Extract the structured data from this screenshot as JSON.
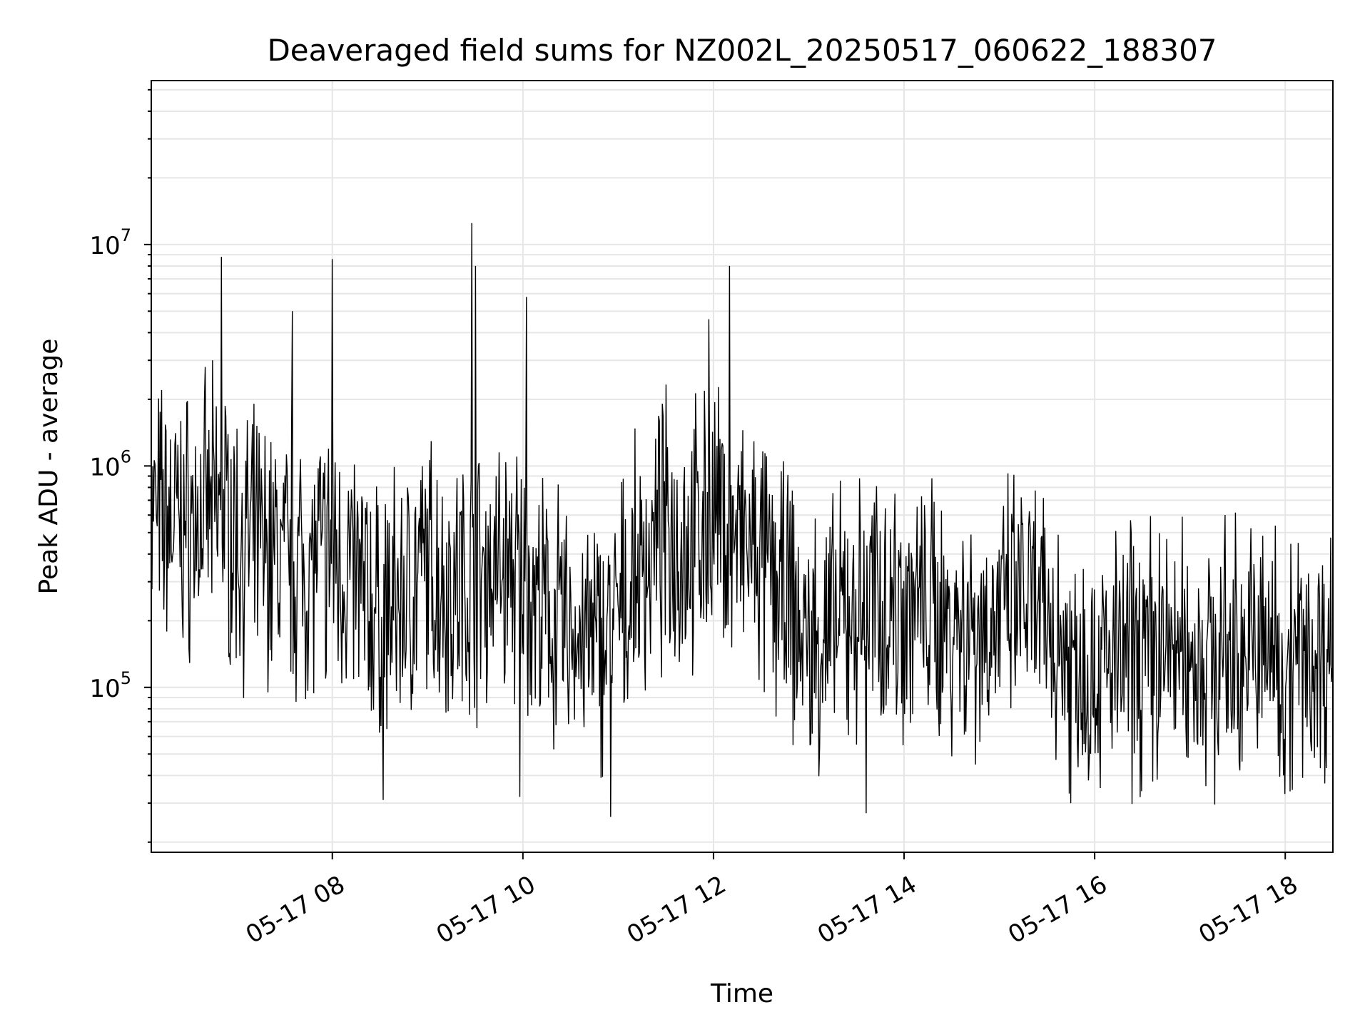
{
  "chart_data": {
    "type": "line",
    "title": "Deaveraged field sums for NZ002L_20250517_060622_188307",
    "xlabel": "Time",
    "ylabel": "Peak ADU - average",
    "y_scale": "log",
    "ylim": [
      18000,
      55000000
    ],
    "xlim": [
      "2025-05-17 06:06",
      "2025-05-17 18:30"
    ],
    "grid": true,
    "line_color": "#000000",
    "grid_color": "#e6e6e6",
    "x_ticks": [
      {
        "label": "05-17 08",
        "t": "2025-05-17 08:00"
      },
      {
        "label": "05-17 10",
        "t": "2025-05-17 10:00"
      },
      {
        "label": "05-17 12",
        "t": "2025-05-17 12:00"
      },
      {
        "label": "05-17 14",
        "t": "2025-05-17 14:00"
      },
      {
        "label": "05-17 16",
        "t": "2025-05-17 16:00"
      },
      {
        "label": "05-17 18",
        "t": "2025-05-17 18:00"
      }
    ],
    "y_ticks": [
      {
        "base": "10",
        "exp": "5",
        "value": 100000
      },
      {
        "base": "10",
        "exp": "6",
        "value": 1000000
      },
      {
        "base": "10",
        "exp": "7",
        "value": 10000000
      }
    ],
    "series": [
      {
        "x": [
          "2025-05-17 06:06",
          "2025-05-17 06:30",
          "2025-05-17 06:50",
          "2025-05-17 07:00",
          "2025-05-17 07:15",
          "2025-05-17 07:30",
          "2025-05-17 07:45",
          "2025-05-17 08:00",
          "2025-05-17 08:15",
          "2025-05-17 08:30",
          "2025-05-17 08:45",
          "2025-05-17 09:00",
          "2025-05-17 09:15",
          "2025-05-17 09:28",
          "2025-05-17 09:45",
          "2025-05-17 10:00",
          "2025-05-17 10:15",
          "2025-05-17 10:30",
          "2025-05-17 10:45",
          "2025-05-17 11:00",
          "2025-05-17 11:15",
          "2025-05-17 11:30",
          "2025-05-17 11:45",
          "2025-05-17 12:00",
          "2025-05-17 12:10",
          "2025-05-17 12:30",
          "2025-05-17 12:45",
          "2025-05-17 13:00",
          "2025-05-17 13:15",
          "2025-05-17 13:30",
          "2025-05-17 13:45",
          "2025-05-17 14:00",
          "2025-05-17 14:15",
          "2025-05-17 14:30",
          "2025-05-17 14:45",
          "2025-05-17 15:00",
          "2025-05-17 15:15",
          "2025-05-17 15:30",
          "2025-05-17 15:45",
          "2025-05-17 16:00",
          "2025-05-17 16:15",
          "2025-05-17 16:30",
          "2025-05-17 16:45",
          "2025-05-17 17:00",
          "2025-05-17 17:15",
          "2025-05-17 17:30",
          "2025-05-17 17:45",
          "2025-05-17 18:00",
          "2025-05-17 18:15",
          "2025-05-17 18:30"
        ],
        "y": [
          600000,
          550000,
          650000,
          450000,
          420000,
          380000,
          350000,
          400000,
          300000,
          200000,
          250000,
          350000,
          280000,
          300000,
          350000,
          300000,
          200000,
          180000,
          150000,
          200000,
          350000,
          500000,
          450000,
          600000,
          500000,
          350000,
          250000,
          150000,
          180000,
          220000,
          250000,
          230000,
          220000,
          200000,
          190000,
          200000,
          250000,
          180000,
          150000,
          120000,
          130000,
          140000,
          150000,
          140000,
          130000,
          145000,
          150000,
          140000,
          130000,
          150000
        ]
      }
    ],
    "peaks": [
      {
        "t": "2025-05-17 06:50",
        "y": 8800000
      },
      {
        "t": "2025-05-17 08:00",
        "y": 8600000
      },
      {
        "t": "2025-05-17 09:28",
        "y": 12500000
      },
      {
        "t": "2025-05-17 09:30",
        "y": 8000000
      },
      {
        "t": "2025-05-17 10:02",
        "y": 5800000
      },
      {
        "t": "2025-05-17 12:10",
        "y": 8000000
      },
      {
        "t": "2025-05-17 11:57",
        "y": 4600000
      },
      {
        "t": "2025-05-17 07:35",
        "y": 5000000
      }
    ],
    "troughs": [
      {
        "t": "2025-05-17 08:32",
        "y": 31000
      },
      {
        "t": "2025-05-17 09:58",
        "y": 32000
      },
      {
        "t": "2025-05-17 10:55",
        "y": 26000
      },
      {
        "t": "2025-05-17 13:36",
        "y": 27000
      },
      {
        "t": "2025-05-17 15:45",
        "y": 30000
      },
      {
        "t": "2025-05-17 18:00",
        "y": 33000
      }
    ]
  }
}
